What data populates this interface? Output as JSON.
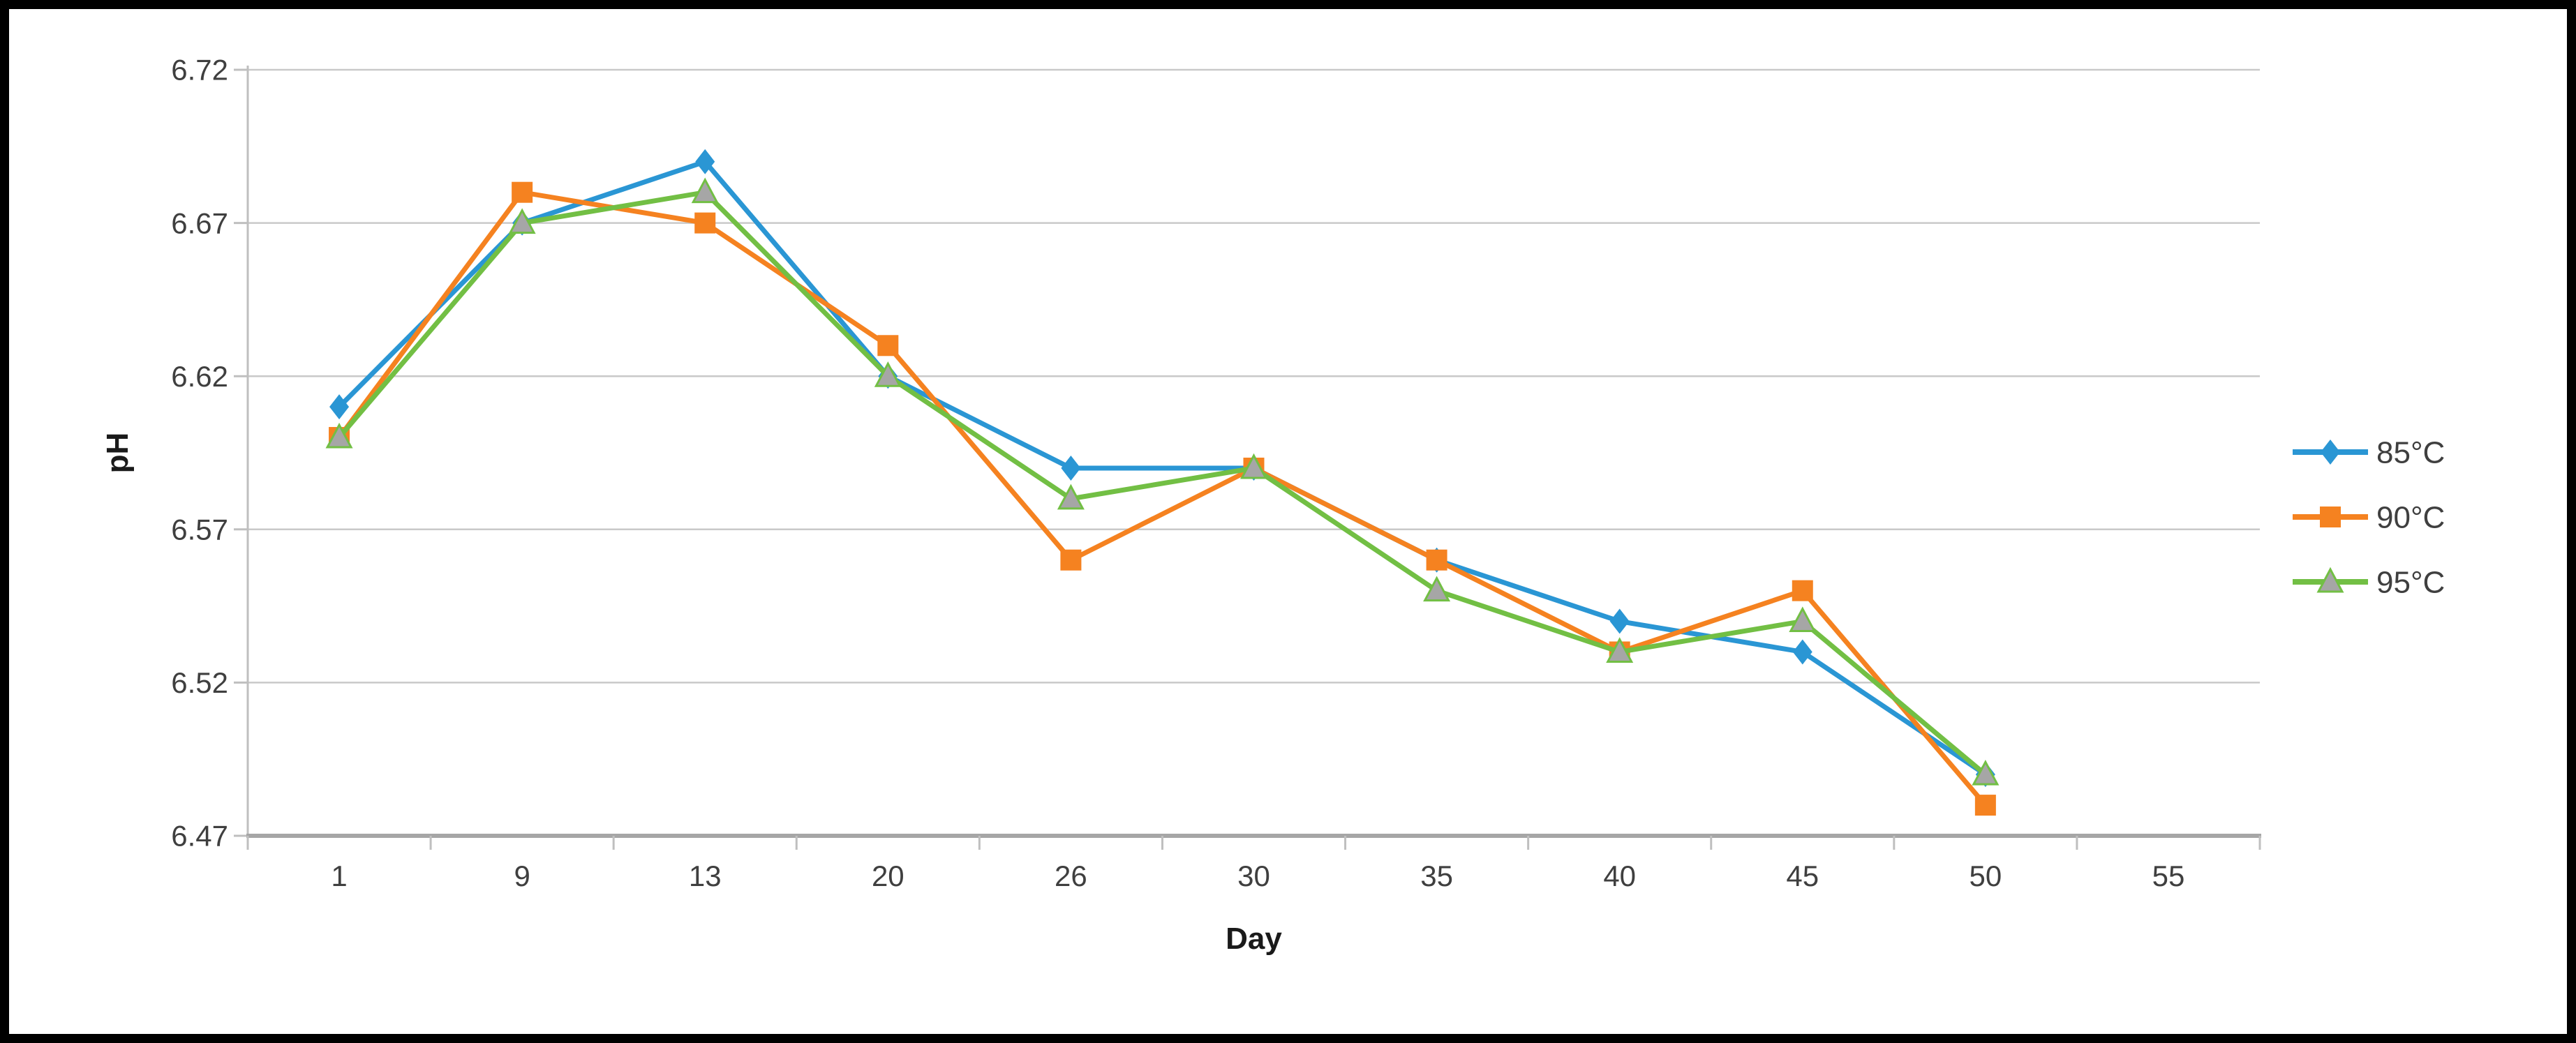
{
  "figure": {
    "background": "#ffffff",
    "border_color": "#000000"
  },
  "chart_data": {
    "type": "line",
    "title": "",
    "xlabel": "Day",
    "ylabel": "pH",
    "categories": [
      "1",
      "9",
      "13",
      "20",
      "26",
      "30",
      "35",
      "40",
      "45",
      "50",
      "55"
    ],
    "y_axis": {
      "min": 6.47,
      "max": 6.72,
      "step": 0.05,
      "tick_labels": [
        "6.47",
        "6.52",
        "6.57",
        "6.62",
        "6.67",
        "6.72"
      ]
    },
    "grid": "horizontal",
    "legend_position": "right",
    "legend": [
      "85°C",
      "90°C",
      "95°C"
    ],
    "series": [
      {
        "name": "85°C",
        "color": "#2A96D4",
        "marker": "diamond",
        "marker_fill": "#2A96D4",
        "values": [
          6.61,
          6.67,
          6.69,
          6.62,
          6.59,
          6.59,
          6.56,
          6.54,
          6.53,
          6.49,
          null
        ]
      },
      {
        "name": "90°C",
        "color": "#F58220",
        "marker": "square",
        "marker_fill": "#F58220",
        "values": [
          6.6,
          6.68,
          6.67,
          6.63,
          6.56,
          6.59,
          6.56,
          6.53,
          6.55,
          6.48,
          null
        ]
      },
      {
        "name": "95°C",
        "color": "#72BF44",
        "marker": "triangle",
        "marker_fill": "#A6A6A6",
        "values": [
          6.6,
          6.67,
          6.68,
          6.62,
          6.58,
          6.59,
          6.55,
          6.53,
          6.54,
          6.49,
          null
        ]
      }
    ],
    "axis_text_color": "#3F3F3F",
    "title_text_color": "#1A1A1A",
    "gridline_color": "#C9C9C9",
    "axis_line_color": "#A6A6A6",
    "y_axis_line_color": "#BFBFBF"
  }
}
